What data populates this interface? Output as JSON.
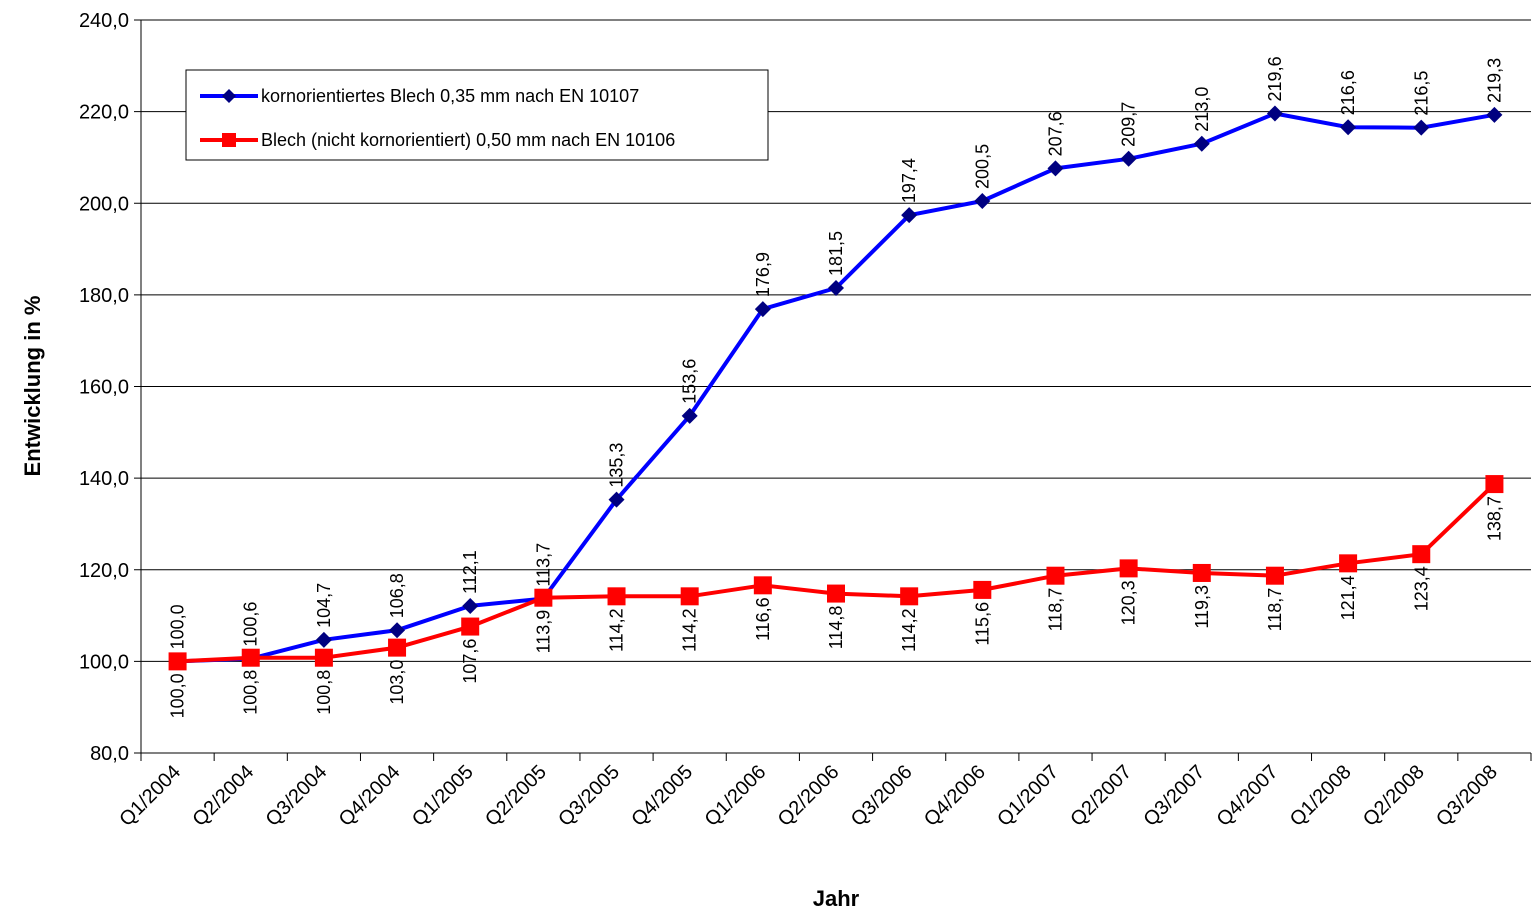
{
  "chart_data": {
    "type": "line",
    "title": "",
    "xlabel": "Jahr",
    "ylabel": "Entwicklung in %",
    "ylim": [
      80,
      240
    ],
    "yticks": [
      "80,0",
      "100,0",
      "120,0",
      "140,0",
      "160,0",
      "180,0",
      "200,0",
      "220,0",
      "240,0"
    ],
    "ytick_values": [
      80,
      100,
      120,
      140,
      160,
      180,
      200,
      220,
      240
    ],
    "grid": "horizontal",
    "legend_position": "top-left",
    "categories": [
      "Q1/2004",
      "Q2/2004",
      "Q3/2004",
      "Q4/2004",
      "Q1/2005",
      "Q2/2005",
      "Q3/2005",
      "Q4/2005",
      "Q1/2006",
      "Q2/2006",
      "Q3/2006",
      "Q4/2006",
      "Q1/2007",
      "Q2/2007",
      "Q3/2007",
      "Q4/2007",
      "Q1/2008",
      "Q2/2008",
      "Q3/2008"
    ],
    "series": [
      {
        "name": "kornorientiertes Blech 0,35 mm nach EN 10107",
        "color": "#0000ff",
        "marker_color": "#000080",
        "marker": "diamond",
        "values": [
          100.0,
          100.6,
          104.7,
          106.8,
          112.1,
          113.7,
          135.3,
          153.6,
          176.9,
          181.5,
          197.4,
          200.5,
          207.6,
          209.7,
          213.0,
          219.6,
          216.6,
          216.5,
          219.3
        ],
        "labels": [
          "100,0",
          "100,6",
          "104,7",
          "106,8",
          "112,1",
          "113,7",
          "135,3",
          "153,6",
          "176,9",
          "181,5",
          "197,4",
          "200,5",
          "207,6",
          "209,7",
          "213,0",
          "219,6",
          "216,6",
          "216,5",
          "219,3"
        ]
      },
      {
        "name": "Blech (nicht kornorientiert) 0,50 mm nach EN 10106",
        "color": "#ff0000",
        "marker_color": "#ff0000",
        "marker": "square",
        "values": [
          100.0,
          100.8,
          100.8,
          103.0,
          107.6,
          113.9,
          114.2,
          114.2,
          116.6,
          114.8,
          114.2,
          115.6,
          118.7,
          120.3,
          119.3,
          118.7,
          121.4,
          123.4,
          138.7
        ],
        "labels": [
          "100,0",
          "100,8",
          "100,8",
          "103,0",
          "107,6",
          "113,9",
          "114,2",
          "114,2",
          "116,6",
          "114,8",
          "114,2",
          "115,6",
          "118,7",
          "120,3",
          "119,3",
          "118,7",
          "121,4",
          "123,4",
          "138,7"
        ]
      }
    ]
  }
}
